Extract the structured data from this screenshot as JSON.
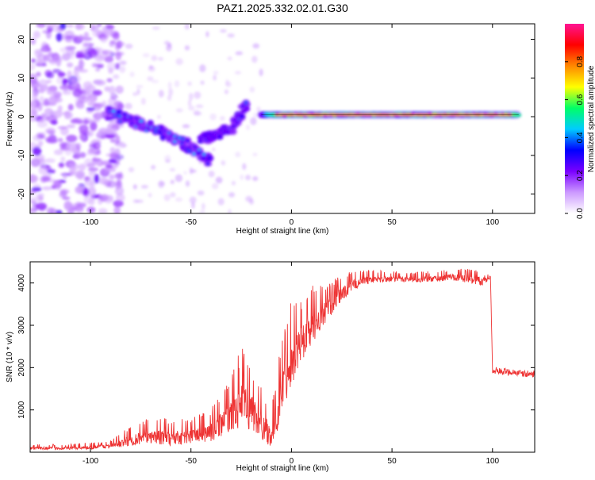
{
  "chart_data": [
    {
      "type": "heatmap",
      "title": "PAZ1.2025.332.02.01.G30",
      "xlabel": "Height of straight line (km)",
      "ylabel": "Frequency (Hz)",
      "xlim": [
        -130,
        121
      ],
      "ylim": [
        -25,
        24
      ],
      "xticks": [
        -100,
        -50,
        0,
        50,
        100
      ],
      "xtick_labels": [
        "-100",
        "-50",
        "0",
        "50",
        "100"
      ],
      "yticks": [
        -20,
        -10,
        0,
        10,
        20
      ],
      "ytick_labels": [
        "-20",
        "-10",
        "0",
        "10",
        "20"
      ],
      "colorbar": {
        "label": "Normalized spectral amplitude",
        "range": [
          0,
          1
        ],
        "ticks": [
          0,
          0.2,
          0.4,
          0.6,
          0.8
        ],
        "tick_labels": [
          "0.0",
          "0.2",
          "0.4",
          "0.6",
          "0.8"
        ],
        "colors": [
          "#ffffff",
          "#cc99ff",
          "#7a00ff",
          "#0000ff",
          "#00ccff",
          "#00ff66",
          "#ffff00",
          "#ff8800",
          "#ff0000",
          "#ff1493"
        ]
      },
      "features": [
        {
          "name": "noise-region",
          "x_range": [
            -130,
            -85
          ],
          "freq_range": [
            -25,
            24
          ],
          "amplitude": 0.15
        },
        {
          "name": "descending-branch",
          "x": [
            -90,
            -80,
            -70,
            -60,
            -50,
            -40
          ],
          "freq": [
            1,
            -1,
            -3,
            -5,
            -8,
            -12
          ],
          "amplitude": 0.35
        },
        {
          "name": "ascending-branch",
          "x": [
            -45,
            -38,
            -30,
            -22
          ],
          "freq": [
            -6,
            -5,
            -3,
            3
          ],
          "amplitude": 0.3
        },
        {
          "name": "carrier-line",
          "x_range": [
            -15,
            113
          ],
          "freq": 0.5,
          "amplitude": 0.95
        }
      ]
    },
    {
      "type": "line",
      "xlabel": "Height of straight line (km)",
      "ylabel": "SNR (10 * v/v)",
      "xlim": [
        -130,
        121
      ],
      "ylim": [
        0,
        4500
      ],
      "xticks": [
        -100,
        -50,
        0,
        50,
        100
      ],
      "xtick_labels": [
        "-100",
        "-50",
        "0",
        "50",
        "100"
      ],
      "yticks": [
        1000,
        2000,
        3000,
        4000
      ],
      "ytick_labels": [
        "1000",
        "2000",
        "3000",
        "4000"
      ],
      "series": [
        {
          "name": "SNR",
          "color": "#ee3333",
          "x": [
            -130,
            -110,
            -90,
            -80,
            -70,
            -60,
            -50,
            -40,
            -30,
            -25,
            -20,
            -15,
            -10,
            -8,
            -5,
            0,
            5,
            10,
            15,
            20,
            25,
            30,
            35,
            40,
            50,
            60,
            70,
            80,
            90,
            95,
            99,
            100,
            105,
            110,
            115,
            121
          ],
          "y": [
            100,
            100,
            150,
            300,
            400,
            350,
            400,
            500,
            900,
            1200,
            1000,
            700,
            400,
            700,
            1500,
            2300,
            2600,
            3000,
            3250,
            3500,
            3750,
            3950,
            4050,
            4100,
            4100,
            4100,
            4100,
            4150,
            4100,
            4050,
            4150,
            1950,
            1900,
            1900,
            1850,
            1850
          ],
          "noise": [
            40,
            40,
            60,
            150,
            200,
            200,
            200,
            250,
            400,
            600,
            500,
            400,
            300,
            400,
            600,
            700,
            500,
            450,
            350,
            250,
            200,
            150,
            120,
            100,
            80,
            80,
            80,
            80,
            120,
            120,
            100,
            80,
            80,
            80,
            80,
            80
          ]
        }
      ]
    }
  ]
}
